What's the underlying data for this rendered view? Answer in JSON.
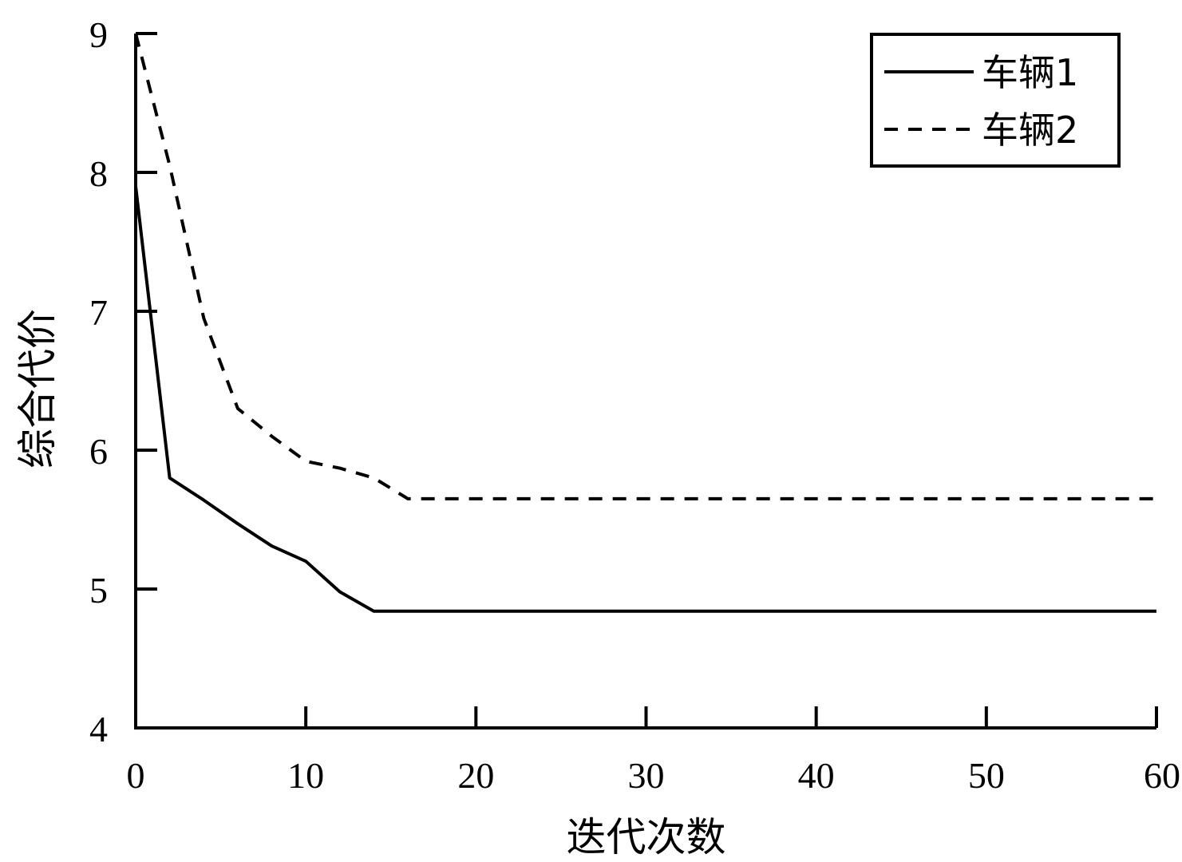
{
  "chart_data": {
    "type": "line",
    "title": "",
    "xlabel": "迭代次数",
    "ylabel": "综合代价",
    "xlim": [
      0,
      60
    ],
    "ylim": [
      4,
      9
    ],
    "xticks": [
      0,
      10,
      20,
      30,
      40,
      50,
      60
    ],
    "yticks": [
      4,
      5,
      6,
      7,
      8,
      9
    ],
    "x_tick_labels": [
      "0",
      "10",
      "20",
      "30",
      "40",
      "50",
      "60"
    ],
    "y_tick_labels": [
      "4",
      "5",
      "6",
      "7",
      "8",
      "9"
    ],
    "grid": false,
    "legend_position": "top-right",
    "series": [
      {
        "name": "车辆1",
        "style": "solid",
        "color": "#000000",
        "x": [
          0,
          2,
          4,
          6,
          8,
          10,
          12,
          14,
          16,
          60
        ],
        "y": [
          7.9,
          5.8,
          5.64,
          5.47,
          5.31,
          5.2,
          4.98,
          4.84,
          4.84,
          4.84
        ]
      },
      {
        "name": "车辆2",
        "style": "dashed",
        "color": "#000000",
        "x": [
          0,
          2,
          4,
          6,
          8,
          10,
          12,
          14,
          16,
          60
        ],
        "y": [
          9.0,
          8.05,
          6.95,
          6.3,
          6.1,
          5.92,
          5.87,
          5.8,
          5.65,
          5.65
        ]
      }
    ]
  }
}
